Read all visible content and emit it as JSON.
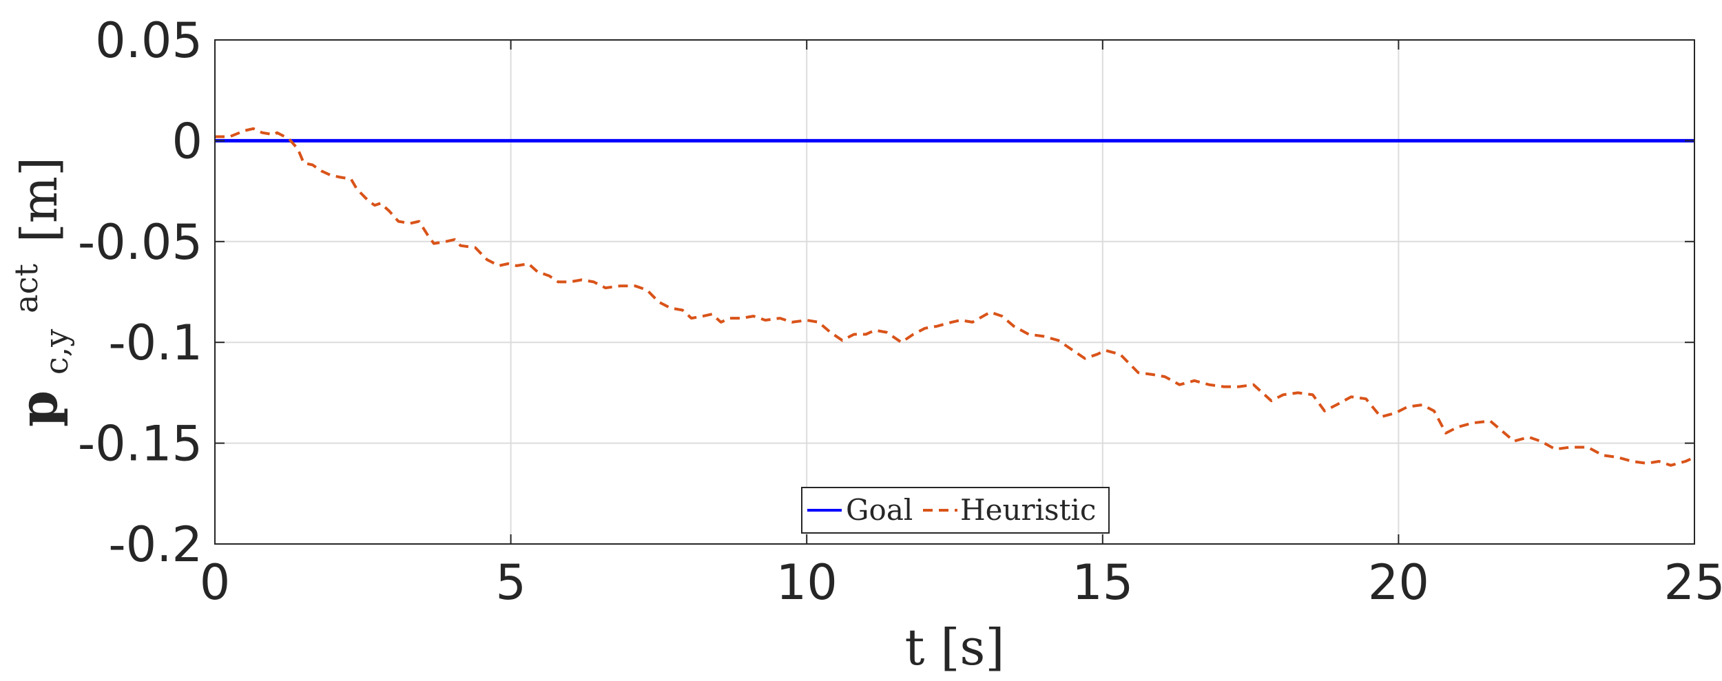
{
  "chart_data": {
    "type": "line",
    "title": "",
    "xlabel": "t [s]",
    "ylabel": {
      "base": "p",
      "superscript": "act",
      "subscript": "c,y",
      "unit": "[m]"
    },
    "xlim": [
      0,
      25
    ],
    "ylim": [
      -0.2,
      0.05
    ],
    "xticks": [
      0,
      5,
      10,
      15,
      20,
      25
    ],
    "xtick_labels": [
      "0",
      "5",
      "10",
      "15",
      "20",
      "25"
    ],
    "yticks": [
      0.05,
      0,
      -0.05,
      -0.1,
      -0.15,
      -0.2
    ],
    "ytick_labels": [
      "0.05",
      "0",
      "-0.05",
      "-0.1",
      "-0.15",
      "-0.2"
    ],
    "grid": true,
    "legend": {
      "placement": "bottom-center",
      "orientation": "horizontal"
    },
    "series": [
      {
        "name": "Goal",
        "color": "#0000ff",
        "style": "solid",
        "points": [
          [
            0,
            0
          ],
          [
            25,
            0
          ]
        ]
      },
      {
        "name": "Heuristic",
        "color": "#d95319",
        "style": "dashed",
        "points": [
          [
            0.0,
            0.002
          ],
          [
            0.25,
            0.002
          ],
          [
            0.5,
            0.005
          ],
          [
            0.65,
            0.006
          ],
          [
            0.8,
            0.004
          ],
          [
            1.0,
            0.003
          ],
          [
            1.05,
            0.004
          ],
          [
            1.25,
            0.001
          ],
          [
            1.4,
            -0.004
          ],
          [
            1.5,
            -0.011
          ],
          [
            1.65,
            -0.012
          ],
          [
            1.8,
            -0.015
          ],
          [
            1.95,
            -0.017
          ],
          [
            2.1,
            -0.018
          ],
          [
            2.3,
            -0.019
          ],
          [
            2.4,
            -0.024
          ],
          [
            2.6,
            -0.03
          ],
          [
            2.7,
            -0.032
          ],
          [
            2.8,
            -0.031
          ],
          [
            2.95,
            -0.035
          ],
          [
            3.1,
            -0.04
          ],
          [
            3.3,
            -0.041
          ],
          [
            3.45,
            -0.04
          ],
          [
            3.6,
            -0.047
          ],
          [
            3.7,
            -0.051
          ],
          [
            3.9,
            -0.05
          ],
          [
            4.05,
            -0.049
          ],
          [
            4.15,
            -0.052
          ],
          [
            4.4,
            -0.053
          ],
          [
            4.6,
            -0.059
          ],
          [
            4.8,
            -0.062
          ],
          [
            4.95,
            -0.061
          ],
          [
            5.1,
            -0.062
          ],
          [
            5.3,
            -0.061
          ],
          [
            5.45,
            -0.065
          ],
          [
            5.65,
            -0.067
          ],
          [
            5.8,
            -0.07
          ],
          [
            6.0,
            -0.07
          ],
          [
            6.2,
            -0.069
          ],
          [
            6.4,
            -0.07
          ],
          [
            6.6,
            -0.073
          ],
          [
            6.85,
            -0.072
          ],
          [
            7.1,
            -0.072
          ],
          [
            7.3,
            -0.074
          ],
          [
            7.5,
            -0.08
          ],
          [
            7.7,
            -0.083
          ],
          [
            7.9,
            -0.084
          ],
          [
            8.05,
            -0.088
          ],
          [
            8.25,
            -0.087
          ],
          [
            8.4,
            -0.086
          ],
          [
            8.55,
            -0.09
          ],
          [
            8.7,
            -0.088
          ],
          [
            8.9,
            -0.088
          ],
          [
            9.1,
            -0.087
          ],
          [
            9.3,
            -0.089
          ],
          [
            9.55,
            -0.088
          ],
          [
            9.75,
            -0.09
          ],
          [
            10.0,
            -0.089
          ],
          [
            10.2,
            -0.09
          ],
          [
            10.4,
            -0.095
          ],
          [
            10.6,
            -0.099
          ],
          [
            10.8,
            -0.096
          ],
          [
            11.0,
            -0.096
          ],
          [
            11.15,
            -0.094
          ],
          [
            11.35,
            -0.095
          ],
          [
            11.6,
            -0.1
          ],
          [
            11.8,
            -0.096
          ],
          [
            12.0,
            -0.093
          ],
          [
            12.2,
            -0.092
          ],
          [
            12.45,
            -0.09
          ],
          [
            12.6,
            -0.089
          ],
          [
            12.8,
            -0.09
          ],
          [
            13.1,
            -0.085
          ],
          [
            13.3,
            -0.087
          ],
          [
            13.5,
            -0.092
          ],
          [
            13.75,
            -0.096
          ],
          [
            14.0,
            -0.097
          ],
          [
            14.25,
            -0.099
          ],
          [
            14.5,
            -0.104
          ],
          [
            14.7,
            -0.108
          ],
          [
            14.9,
            -0.106
          ],
          [
            15.05,
            -0.104
          ],
          [
            15.3,
            -0.106
          ],
          [
            15.6,
            -0.115
          ],
          [
            15.85,
            -0.116
          ],
          [
            16.05,
            -0.117
          ],
          [
            16.3,
            -0.121
          ],
          [
            16.55,
            -0.119
          ],
          [
            16.8,
            -0.121
          ],
          [
            17.05,
            -0.122
          ],
          [
            17.3,
            -0.122
          ],
          [
            17.55,
            -0.121
          ],
          [
            17.85,
            -0.129
          ],
          [
            18.05,
            -0.126
          ],
          [
            18.3,
            -0.125
          ],
          [
            18.55,
            -0.126
          ],
          [
            18.75,
            -0.134
          ],
          [
            18.95,
            -0.131
          ],
          [
            19.2,
            -0.127
          ],
          [
            19.45,
            -0.128
          ],
          [
            19.7,
            -0.137
          ],
          [
            19.95,
            -0.135
          ],
          [
            20.15,
            -0.132
          ],
          [
            20.4,
            -0.131
          ],
          [
            20.6,
            -0.134
          ],
          [
            20.8,
            -0.145
          ],
          [
            21.0,
            -0.142
          ],
          [
            21.25,
            -0.14
          ],
          [
            21.55,
            -0.139
          ],
          [
            21.75,
            -0.144
          ],
          [
            21.95,
            -0.149
          ],
          [
            22.2,
            -0.147
          ],
          [
            22.4,
            -0.149
          ],
          [
            22.65,
            -0.153
          ],
          [
            22.9,
            -0.152
          ],
          [
            23.2,
            -0.152
          ],
          [
            23.45,
            -0.156
          ],
          [
            23.7,
            -0.157
          ],
          [
            23.95,
            -0.159
          ],
          [
            24.2,
            -0.16
          ],
          [
            24.4,
            -0.159
          ],
          [
            24.6,
            -0.161
          ],
          [
            24.85,
            -0.159
          ],
          [
            25.0,
            -0.157
          ]
        ]
      }
    ]
  }
}
